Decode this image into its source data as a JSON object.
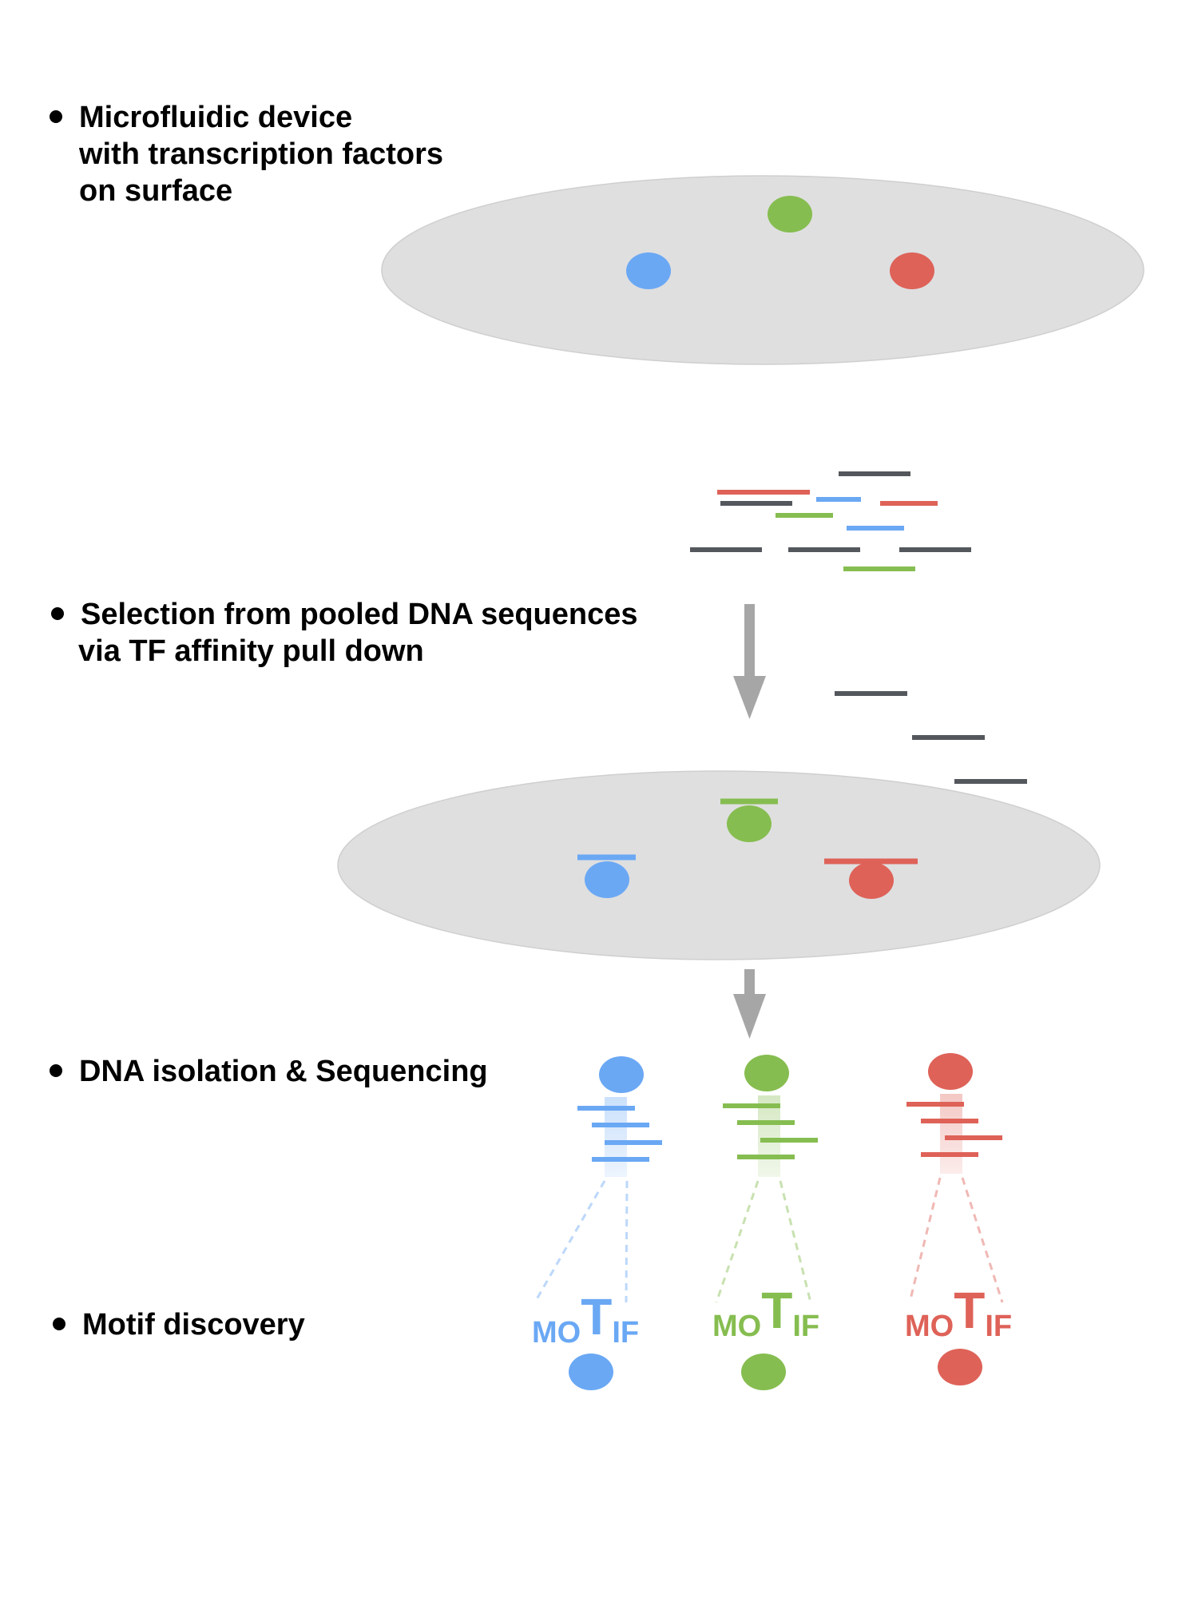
{
  "colors": {
    "blue": "#6aa8f4",
    "green": "#86bd50",
    "red": "#de6258",
    "gray_dna": "#54585c",
    "device": "#dfdfe0",
    "device_edge": "#cfcfd1",
    "arrow": "#a6a6a6",
    "text": "#000000"
  },
  "steps": [
    {
      "lines": [
        "Microfluidic device",
        "with transcription factors",
        "on surface"
      ]
    },
    {
      "lines": [
        "Selection from pooled DNA sequences",
        "via TF affinity pull down"
      ]
    },
    {
      "lines": [
        "DNA isolation & Sequencing"
      ]
    },
    {
      "lines": [
        "Motif discovery"
      ]
    }
  ],
  "motif": {
    "parts": [
      "MO",
      "T",
      "IF"
    ]
  },
  "icons": {
    "device": "microfluidic-device-ellipse",
    "tf": "transcription-factor-ellipse",
    "dna": "dna-fragment-line",
    "arrow": "down-arrow-icon"
  }
}
